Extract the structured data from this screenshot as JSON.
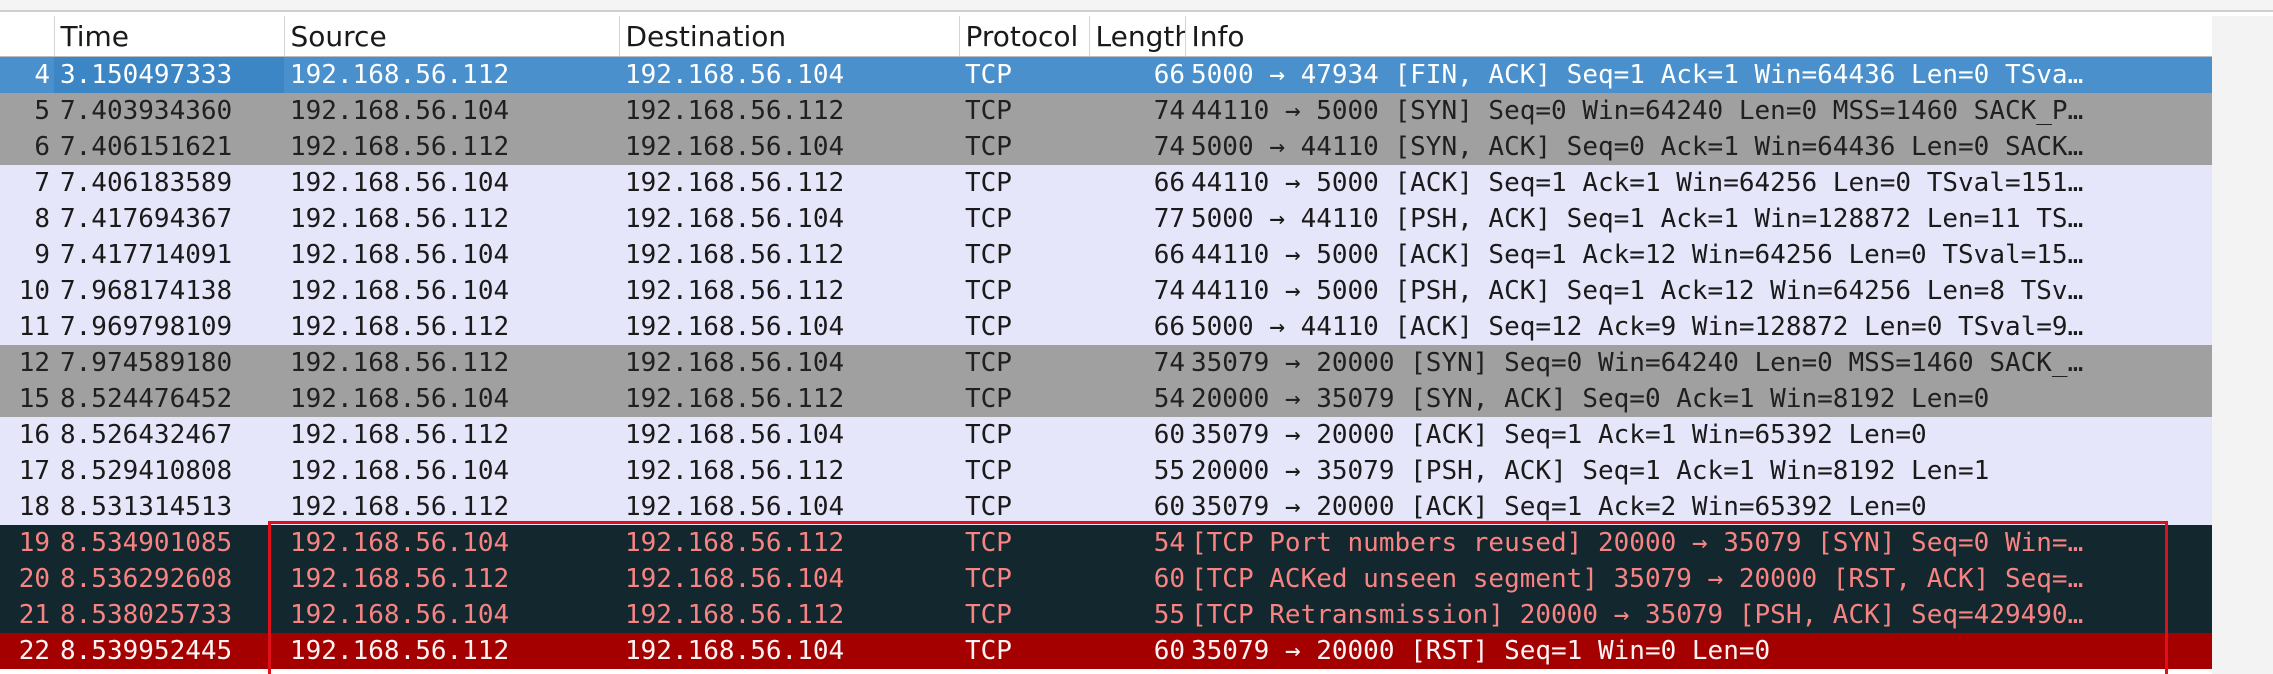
{
  "columns": {
    "no": "",
    "time": "Time",
    "source": "Source",
    "destination": "Destination",
    "protocol": "Protocol",
    "length": "Length",
    "info": "Info"
  },
  "rows": [
    {
      "no": "4",
      "time": "3.150497333",
      "source": "192.168.56.112",
      "destination": "192.168.56.104",
      "protocol": "TCP",
      "length": "66",
      "info": "5000 → 47934 [FIN, ACK] Seq=1 Ack=1 Win=64436 Len=0 TSva…",
      "style": "selected"
    },
    {
      "no": "5",
      "time": "7.403934360",
      "source": "192.168.56.104",
      "destination": "192.168.56.112",
      "protocol": "TCP",
      "length": "74",
      "info": "44110 → 5000 [SYN] Seq=0 Win=64240 Len=0 MSS=1460 SACK_P…",
      "style": "gray"
    },
    {
      "no": "6",
      "time": "7.406151621",
      "source": "192.168.56.112",
      "destination": "192.168.56.104",
      "protocol": "TCP",
      "length": "74",
      "info": "5000 → 44110 [SYN, ACK] Seq=0 Ack=1 Win=64436 Len=0 SACK…",
      "style": "gray"
    },
    {
      "no": "7",
      "time": "7.406183589",
      "source": "192.168.56.104",
      "destination": "192.168.56.112",
      "protocol": "TCP",
      "length": "66",
      "info": "44110 → 5000 [ACK] Seq=1 Ack=1 Win=64256 Len=0 TSval=151…",
      "style": "lav"
    },
    {
      "no": "8",
      "time": "7.417694367",
      "source": "192.168.56.112",
      "destination": "192.168.56.104",
      "protocol": "TCP",
      "length": "77",
      "info": "5000 → 44110 [PSH, ACK] Seq=1 Ack=1 Win=128872 Len=11 TS…",
      "style": "lav"
    },
    {
      "no": "9",
      "time": "7.417714091",
      "source": "192.168.56.104",
      "destination": "192.168.56.112",
      "protocol": "TCP",
      "length": "66",
      "info": "44110 → 5000 [ACK] Seq=1 Ack=12 Win=64256 Len=0 TSval=15…",
      "style": "lav"
    },
    {
      "no": "10",
      "time": "7.968174138",
      "source": "192.168.56.104",
      "destination": "192.168.56.112",
      "protocol": "TCP",
      "length": "74",
      "info": "44110 → 5000 [PSH, ACK] Seq=1 Ack=12 Win=64256 Len=8 TSv…",
      "style": "lav"
    },
    {
      "no": "11",
      "time": "7.969798109",
      "source": "192.168.56.112",
      "destination": "192.168.56.104",
      "protocol": "TCP",
      "length": "66",
      "info": "5000 → 44110 [ACK] Seq=12 Ack=9 Win=128872 Len=0 TSval=9…",
      "style": "lav"
    },
    {
      "no": "12",
      "time": "7.974589180",
      "source": "192.168.56.112",
      "destination": "192.168.56.104",
      "protocol": "TCP",
      "length": "74",
      "info": "35079 → 20000 [SYN] Seq=0 Win=64240 Len=0 MSS=1460 SACK_…",
      "style": "gray"
    },
    {
      "no": "15",
      "time": "8.524476452",
      "source": "192.168.56.104",
      "destination": "192.168.56.112",
      "protocol": "TCP",
      "length": "54",
      "info": "20000 → 35079 [SYN, ACK] Seq=0 Ack=1 Win=8192 Len=0",
      "style": "gray"
    },
    {
      "no": "16",
      "time": "8.526432467",
      "source": "192.168.56.112",
      "destination": "192.168.56.104",
      "protocol": "TCP",
      "length": "60",
      "info": "35079 → 20000 [ACK] Seq=1 Ack=1 Win=65392 Len=0",
      "style": "lav"
    },
    {
      "no": "17",
      "time": "8.529410808",
      "source": "192.168.56.104",
      "destination": "192.168.56.112",
      "protocol": "TCP",
      "length": "55",
      "info": "20000 → 35079 [PSH, ACK] Seq=1 Ack=1 Win=8192 Len=1",
      "style": "lav"
    },
    {
      "no": "18",
      "time": "8.531314513",
      "source": "192.168.56.112",
      "destination": "192.168.56.104",
      "protocol": "TCP",
      "length": "60",
      "info": "35079 → 20000 [ACK] Seq=1 Ack=2 Win=65392 Len=0",
      "style": "lav"
    },
    {
      "no": "19",
      "time": "8.534901085",
      "source": "192.168.56.104",
      "destination": "192.168.56.112",
      "protocol": "TCP",
      "length": "54",
      "info": "[TCP Port numbers reused] 20000 → 35079 [SYN] Seq=0 Win=…",
      "style": "dark"
    },
    {
      "no": "20",
      "time": "8.536292608",
      "source": "192.168.56.112",
      "destination": "192.168.56.104",
      "protocol": "TCP",
      "length": "60",
      "info": "[TCP ACKed unseen segment] 35079 → 20000 [RST, ACK] Seq=…",
      "style": "dark"
    },
    {
      "no": "21",
      "time": "8.538025733",
      "source": "192.168.56.104",
      "destination": "192.168.56.112",
      "protocol": "TCP",
      "length": "55",
      "info": "[TCP Retransmission] 20000 → 35079 [PSH, ACK] Seq=429490…",
      "style": "dark"
    },
    {
      "no": "22",
      "time": "8.539952445",
      "source": "192.168.56.112",
      "destination": "192.168.56.104",
      "protocol": "TCP",
      "length": "60",
      "info": "35079 → 20000 [RST] Seq=1 Win=0 Len=0",
      "style": "red"
    }
  ],
  "colors": {
    "selected": "#4a90cc",
    "gray": "#a0a0a0",
    "lavender": "#e6e6fa",
    "dark": "#12272e",
    "dark_text": "#f78383",
    "red": "#a40000",
    "highlight_box": "#e0101a"
  }
}
